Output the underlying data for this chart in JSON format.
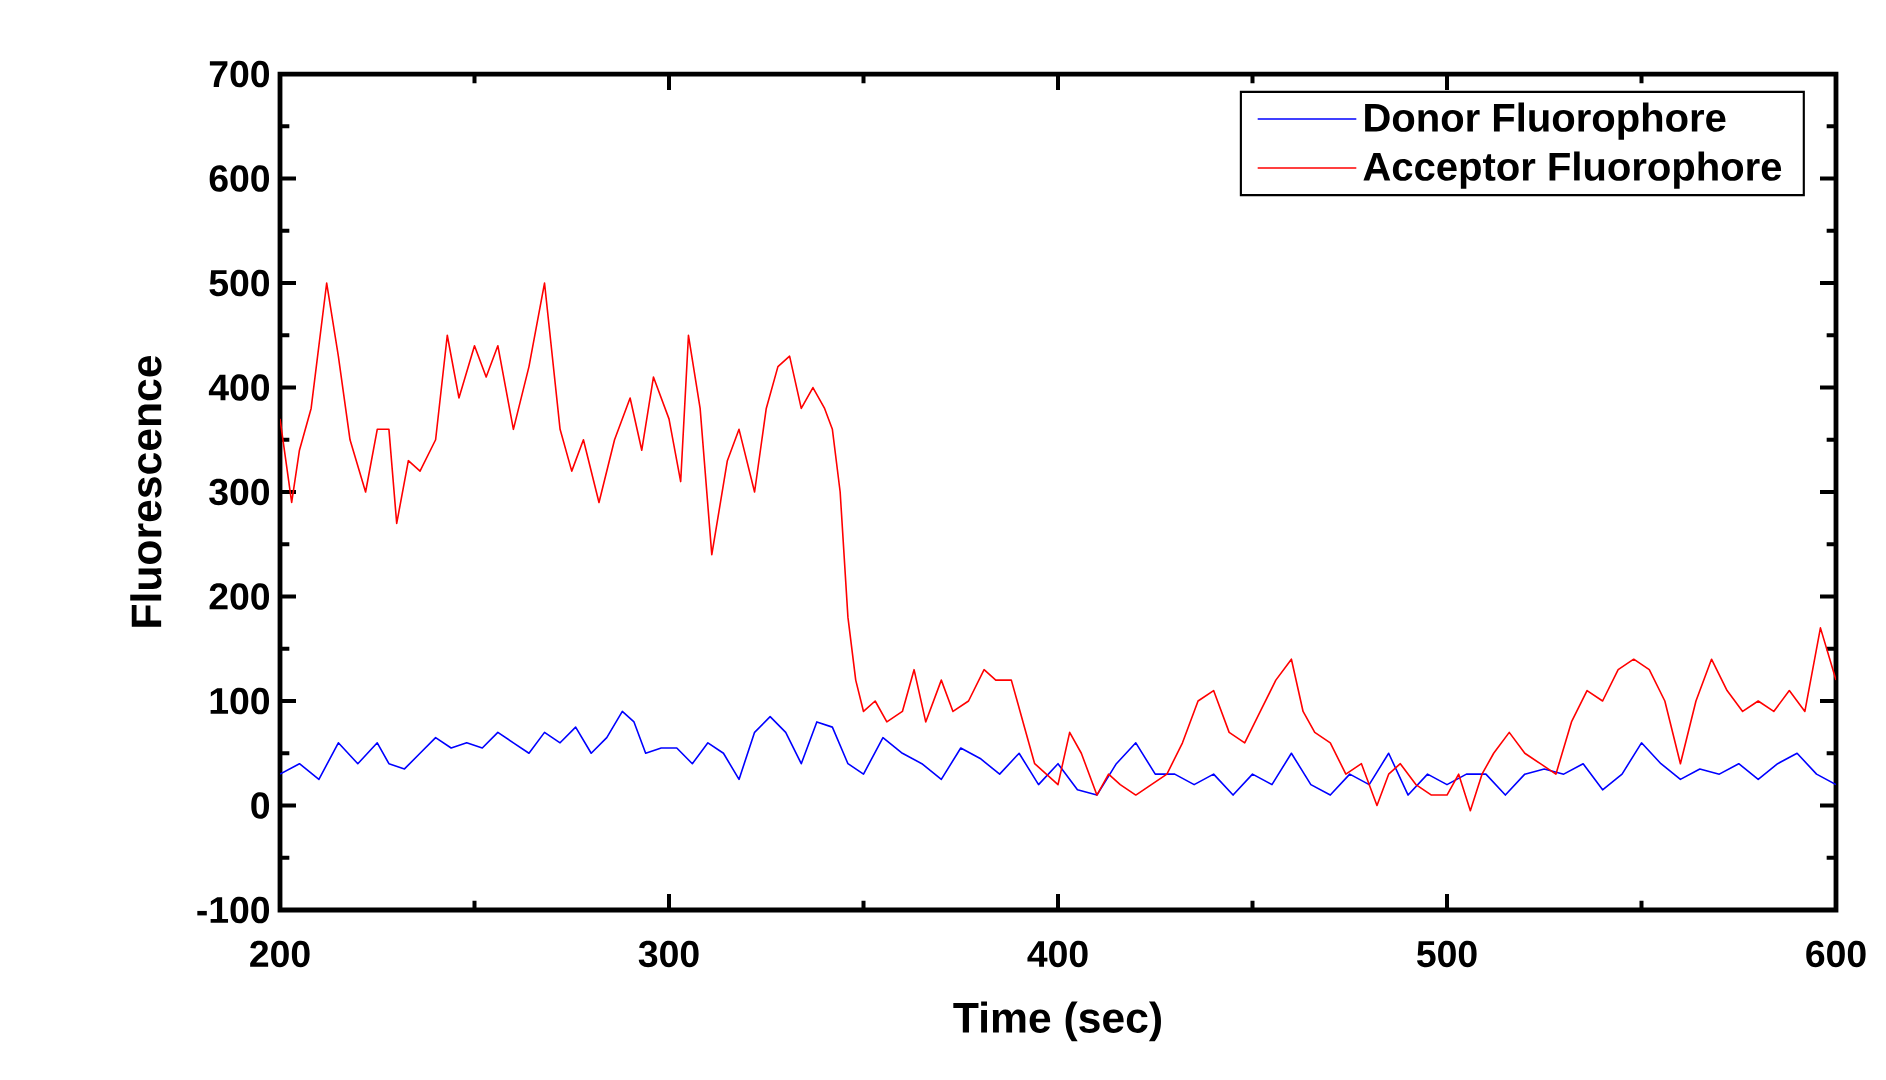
{
  "chart_data": {
    "type": "line",
    "xlabel": "Time (sec)",
    "ylabel": "Fluorescence",
    "xlim": [
      200,
      600
    ],
    "ylim": [
      -100,
      700
    ],
    "xticks": [
      200,
      300,
      400,
      500,
      600
    ],
    "yticks": [
      -100,
      0,
      100,
      200,
      300,
      400,
      500,
      600,
      700
    ],
    "legend": "top right",
    "grid": false,
    "series": [
      {
        "name": "Donor Fluorophore",
        "color": "#0000ff",
        "x": [
          200,
          205,
          210,
          215,
          220,
          225,
          228,
          232,
          236,
          240,
          244,
          248,
          252,
          256,
          260,
          264,
          268,
          272,
          276,
          280,
          284,
          288,
          291,
          294,
          298,
          302,
          306,
          310,
          314,
          318,
          322,
          326,
          330,
          334,
          338,
          342,
          346,
          350,
          355,
          360,
          365,
          370,
          375,
          380,
          385,
          390,
          395,
          400,
          405,
          410,
          415,
          420,
          425,
          430,
          435,
          440,
          445,
          450,
          455,
          460,
          465,
          470,
          475,
          480,
          485,
          490,
          495,
          500,
          505,
          510,
          515,
          520,
          525,
          530,
          535,
          540,
          545,
          550,
          555,
          560,
          565,
          570,
          575,
          580,
          585,
          590,
          595,
          600
        ],
        "values": [
          30,
          40,
          25,
          60,
          40,
          60,
          40,
          35,
          50,
          65,
          55,
          60,
          55,
          70,
          60,
          50,
          70,
          60,
          75,
          50,
          65,
          90,
          80,
          50,
          55,
          55,
          40,
          60,
          50,
          25,
          70,
          85,
          70,
          40,
          80,
          75,
          40,
          30,
          65,
          50,
          40,
          25,
          55,
          45,
          30,
          50,
          20,
          40,
          15,
          10,
          40,
          60,
          30,
          30,
          20,
          30,
          10,
          30,
          20,
          50,
          20,
          10,
          30,
          20,
          50,
          10,
          30,
          20,
          30,
          30,
          10,
          30,
          35,
          30,
          40,
          15,
          30,
          60,
          40,
          25,
          35,
          30,
          40,
          25,
          40,
          50,
          30,
          20
        ]
      },
      {
        "name": "Acceptor Fluorophore",
        "color": "#ff0000",
        "x": [
          200,
          203,
          205,
          208,
          212,
          215,
          218,
          222,
          225,
          228,
          230,
          233,
          236,
          240,
          243,
          246,
          250,
          253,
          256,
          260,
          264,
          268,
          272,
          275,
          278,
          282,
          286,
          290,
          293,
          296,
          300,
          303,
          305,
          308,
          311,
          315,
          318,
          322,
          325,
          328,
          331,
          334,
          337,
          340,
          342,
          344,
          346,
          348,
          350,
          353,
          356,
          360,
          363,
          366,
          370,
          373,
          377,
          381,
          384,
          388,
          391,
          394,
          397,
          400,
          403,
          406,
          410,
          413,
          416,
          420,
          424,
          428,
          432,
          436,
          440,
          444,
          448,
          452,
          456,
          460,
          463,
          466,
          470,
          474,
          478,
          482,
          485,
          488,
          492,
          496,
          500,
          503,
          506,
          509,
          512,
          516,
          520,
          524,
          528,
          532,
          536,
          540,
          544,
          548,
          552,
          556,
          560,
          564,
          568,
          572,
          576,
          580,
          584,
          588,
          592,
          596,
          600
        ],
        "values": [
          370,
          290,
          340,
          380,
          500,
          430,
          350,
          300,
          360,
          360,
          270,
          330,
          320,
          350,
          450,
          390,
          440,
          410,
          440,
          360,
          420,
          500,
          360,
          320,
          350,
          290,
          350,
          390,
          340,
          410,
          370,
          310,
          450,
          380,
          240,
          330,
          360,
          300,
          380,
          420,
          430,
          380,
          400,
          380,
          360,
          300,
          180,
          120,
          90,
          100,
          80,
          90,
          130,
          80,
          120,
          90,
          100,
          130,
          120,
          120,
          80,
          40,
          30,
          20,
          70,
          50,
          10,
          30,
          20,
          10,
          20,
          30,
          60,
          100,
          110,
          70,
          60,
          90,
          120,
          140,
          90,
          70,
          60,
          30,
          40,
          0,
          30,
          40,
          20,
          10,
          10,
          30,
          -5,
          30,
          50,
          70,
          50,
          40,
          30,
          80,
          110,
          100,
          130,
          140,
          130,
          100,
          40,
          100,
          140,
          110,
          90,
          100,
          90,
          110,
          90,
          170,
          120
        ]
      }
    ]
  }
}
